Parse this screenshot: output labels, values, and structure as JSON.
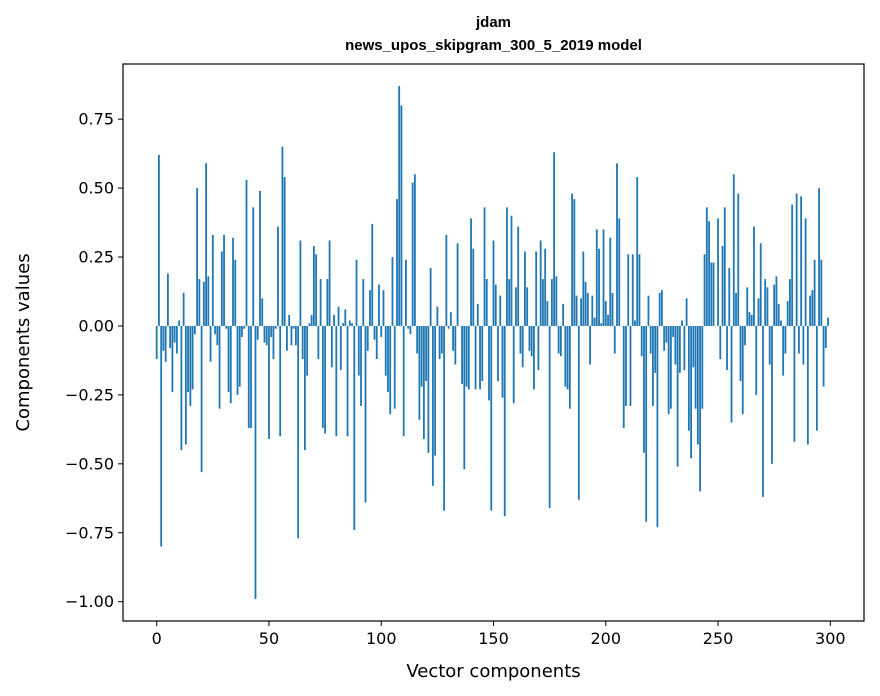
{
  "chart_data": {
    "type": "bar",
    "title": "jdam",
    "subtitle": "news_upos_skipgram_300_5_2019 model",
    "xlabel": "Vector components",
    "ylabel": "Components values",
    "xlim": [
      -15,
      315
    ],
    "ylim": [
      -1.07,
      0.95
    ],
    "xticks": [
      0,
      50,
      100,
      150,
      200,
      250,
      300
    ],
    "yticks": [
      -1.0,
      -0.75,
      -0.5,
      -0.25,
      0.0,
      0.25,
      0.5,
      0.75
    ],
    "ytick_labels": [
      "−1.00",
      "−0.75",
      "−0.50",
      "−0.25",
      "0.00",
      "0.25",
      "0.50",
      "0.75"
    ],
    "xtick_labels": [
      "0",
      "50",
      "100",
      "150",
      "200",
      "250",
      "300"
    ],
    "grid": false,
    "bar_color": "#1f77b4",
    "values": [
      -0.12,
      0.62,
      -0.8,
      -0.09,
      -0.13,
      0.19,
      -0.08,
      -0.24,
      -0.06,
      -0.1,
      0.02,
      -0.45,
      0.12,
      -0.43,
      -0.24,
      -0.29,
      -0.23,
      -0.03,
      0.5,
      0.17,
      -0.53,
      0.16,
      0.59,
      0.18,
      -0.13,
      0.33,
      -0.03,
      -0.07,
      -0.3,
      0.27,
      0.33,
      -0.01,
      -0.24,
      -0.28,
      0.32,
      0.24,
      -0.25,
      -0.22,
      -0.04,
      -0.01,
      0.53,
      -0.37,
      -0.37,
      0.43,
      -0.99,
      -0.05,
      0.49,
      0.1,
      -0.06,
      -0.07,
      -0.41,
      -0.04,
      -0.12,
      -0.01,
      0.36,
      -0.4,
      0.65,
      0.54,
      -0.09,
      0.04,
      -0.07,
      -0.01,
      -0.07,
      -0.77,
      0.31,
      -0.12,
      -0.45,
      -0.18,
      0.01,
      0.04,
      0.29,
      0.26,
      -0.12,
      0.17,
      -0.37,
      -0.39,
      0.17,
      0.31,
      -0.15,
      0.04,
      -0.4,
      0.07,
      -0.16,
      0.01,
      0.06,
      -0.4,
      0.02,
      0.01,
      -0.74,
      0.24,
      -0.18,
      -0.29,
      0.17,
      -0.64,
      -0.09,
      0.13,
      0.37,
      -0.05,
      -0.12,
      0.15,
      -0.04,
      0.13,
      -0.18,
      -0.24,
      -0.32,
      0.25,
      -0.3,
      0.46,
      0.87,
      0.8,
      -0.4,
      0.24,
      -0.01,
      -0.03,
      0.52,
      0.55,
      -0.1,
      -0.34,
      -0.22,
      -0.41,
      -0.2,
      -0.46,
      0.21,
      -0.58,
      -0.47,
      0.07,
      -0.12,
      -0.1,
      -0.67,
      0.33,
      -0.01,
      0.05,
      -0.09,
      -0.14,
      0.3,
      0.0,
      -0.21,
      -0.52,
      -0.22,
      -0.23,
      0.39,
      0.28,
      -0.23,
      0.08,
      -0.23,
      -0.2,
      0.43,
      0.17,
      -0.27,
      -0.67,
      0.31,
      0.15,
      -0.2,
      0.11,
      -0.26,
      -0.69,
      0.43,
      0.17,
      0.4,
      -0.28,
      0.14,
      0.36,
      -0.1,
      -0.15,
      0.27,
      0.14,
      -0.09,
      -0.11,
      -0.23,
      0.27,
      -0.16,
      0.31,
      0.17,
      0.28,
      0.09,
      -0.66,
      0.17,
      0.63,
      0.18,
      -0.1,
      -0.11,
      0.08,
      -0.22,
      -0.23,
      -0.3,
      0.48,
      0.46,
      0.11,
      -0.63,
      0.1,
      0.27,
      0.16,
      0.12,
      -0.14,
      0.11,
      0.03,
      0.35,
      0.28,
      0.01,
      0.35,
      0.09,
      0.04,
      0.32,
      0.12,
      -0.1,
      0.59,
      0.39,
      0.0,
      -0.37,
      -0.29,
      0.26,
      -0.29,
      0.26,
      0.02,
      0.54,
      0.26,
      -0.11,
      -0.46,
      -0.71,
      0.11,
      -0.1,
      -0.29,
      -0.17,
      -0.73,
      0.12,
      0.13,
      -0.09,
      -0.06,
      -0.32,
      -0.3,
      -0.04,
      -0.14,
      -0.51,
      -0.17,
      0.02,
      -0.16,
      0.1,
      -0.38,
      -0.48,
      -0.15,
      -0.3,
      -0.43,
      -0.6,
      -0.3,
      0.26,
      0.43,
      0.38,
      0.23,
      0.23,
      0.0,
      0.39,
      -0.12,
      0.29,
      0.43,
      -0.16,
      0.21,
      -0.35,
      0.55,
      0.12,
      0.48,
      -0.2,
      -0.32,
      -0.07,
      0.14,
      0.05,
      0.04,
      0.36,
      -0.25,
      0.1,
      0.3,
      -0.62,
      0.17,
      0.14,
      -0.14,
      -0.5,
      0.15,
      0.18,
      0.08,
      0.02,
      -0.18,
      -0.1,
      0.09,
      0.17,
      0.44,
      -0.42,
      0.48,
      -0.1,
      0.47,
      -0.14,
      0.39,
      -0.43,
      0.11,
      0.13,
      0.24,
      -0.38,
      0.5,
      0.24,
      -0.22,
      -0.08,
      0.03
    ]
  }
}
